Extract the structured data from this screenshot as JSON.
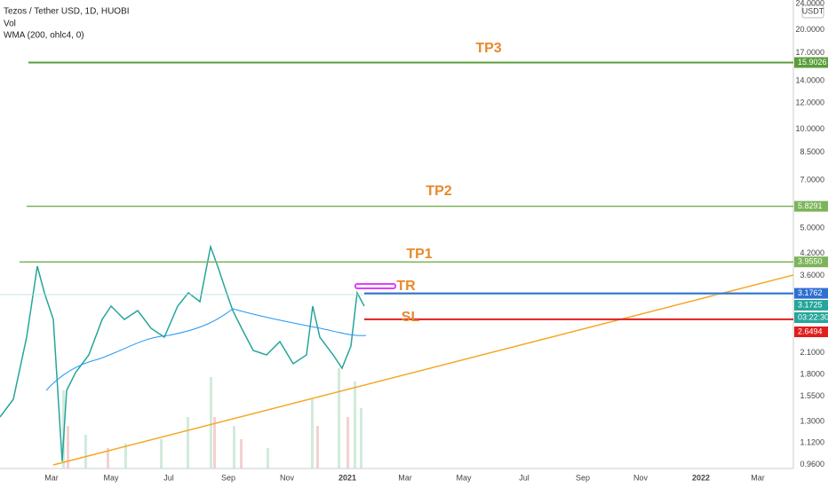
{
  "header": {
    "symbol": "Tezos / Tether USD, 1D, HUOBI",
    "volume": "Vol",
    "indicator": "WMA (200, ohlc4, 0)"
  },
  "currency_button": "USDT",
  "price_axis": [
    {
      "value": 24,
      "label": "24.0000"
    },
    {
      "value": 20,
      "label": "20.0000"
    },
    {
      "value": 17,
      "label": "17.0000"
    },
    {
      "value": 14,
      "label": "14.0000"
    },
    {
      "value": 12,
      "label": "12.0000"
    },
    {
      "value": 10,
      "label": "10.0000"
    },
    {
      "value": 8.5,
      "label": "8.5000"
    },
    {
      "value": 7,
      "label": "7.0000"
    },
    {
      "value": 5,
      "label": "5.0000"
    },
    {
      "value": 4.2,
      "label": "4.2000"
    },
    {
      "value": 3.6,
      "label": "3.6000"
    },
    {
      "value": 2.1,
      "label": "2.1000"
    },
    {
      "value": 1.8,
      "label": "1.8000"
    },
    {
      "value": 1.55,
      "label": "1.5500"
    },
    {
      "value": 1.3,
      "label": "1.3000"
    },
    {
      "value": 1.12,
      "label": "1.1200"
    },
    {
      "value": 0.96,
      "label": "0.9600"
    }
  ],
  "time_axis": [
    "Mar",
    "May",
    "Jul",
    "Sep",
    "Nov",
    "2021",
    "Mar",
    "May",
    "Jul",
    "Sep",
    "Nov",
    "2022",
    "Mar"
  ],
  "annotations": [
    "TP3",
    "TP2",
    "TP1",
    "TR",
    "SL"
  ],
  "level_badges": [
    {
      "value": 15.9026,
      "label": "15.9026"
    },
    {
      "value": 5.8291,
      "label": "5.8291"
    },
    {
      "value": 3.955,
      "label": "3.9550"
    },
    {
      "value": 3.1762,
      "label": "3.1762"
    },
    {
      "value": 3.1725,
      "label": "3.1725"
    },
    {
      "label": "03:22:30"
    },
    {
      "value": 2.6494,
      "label": "2.6494"
    }
  ]
}
